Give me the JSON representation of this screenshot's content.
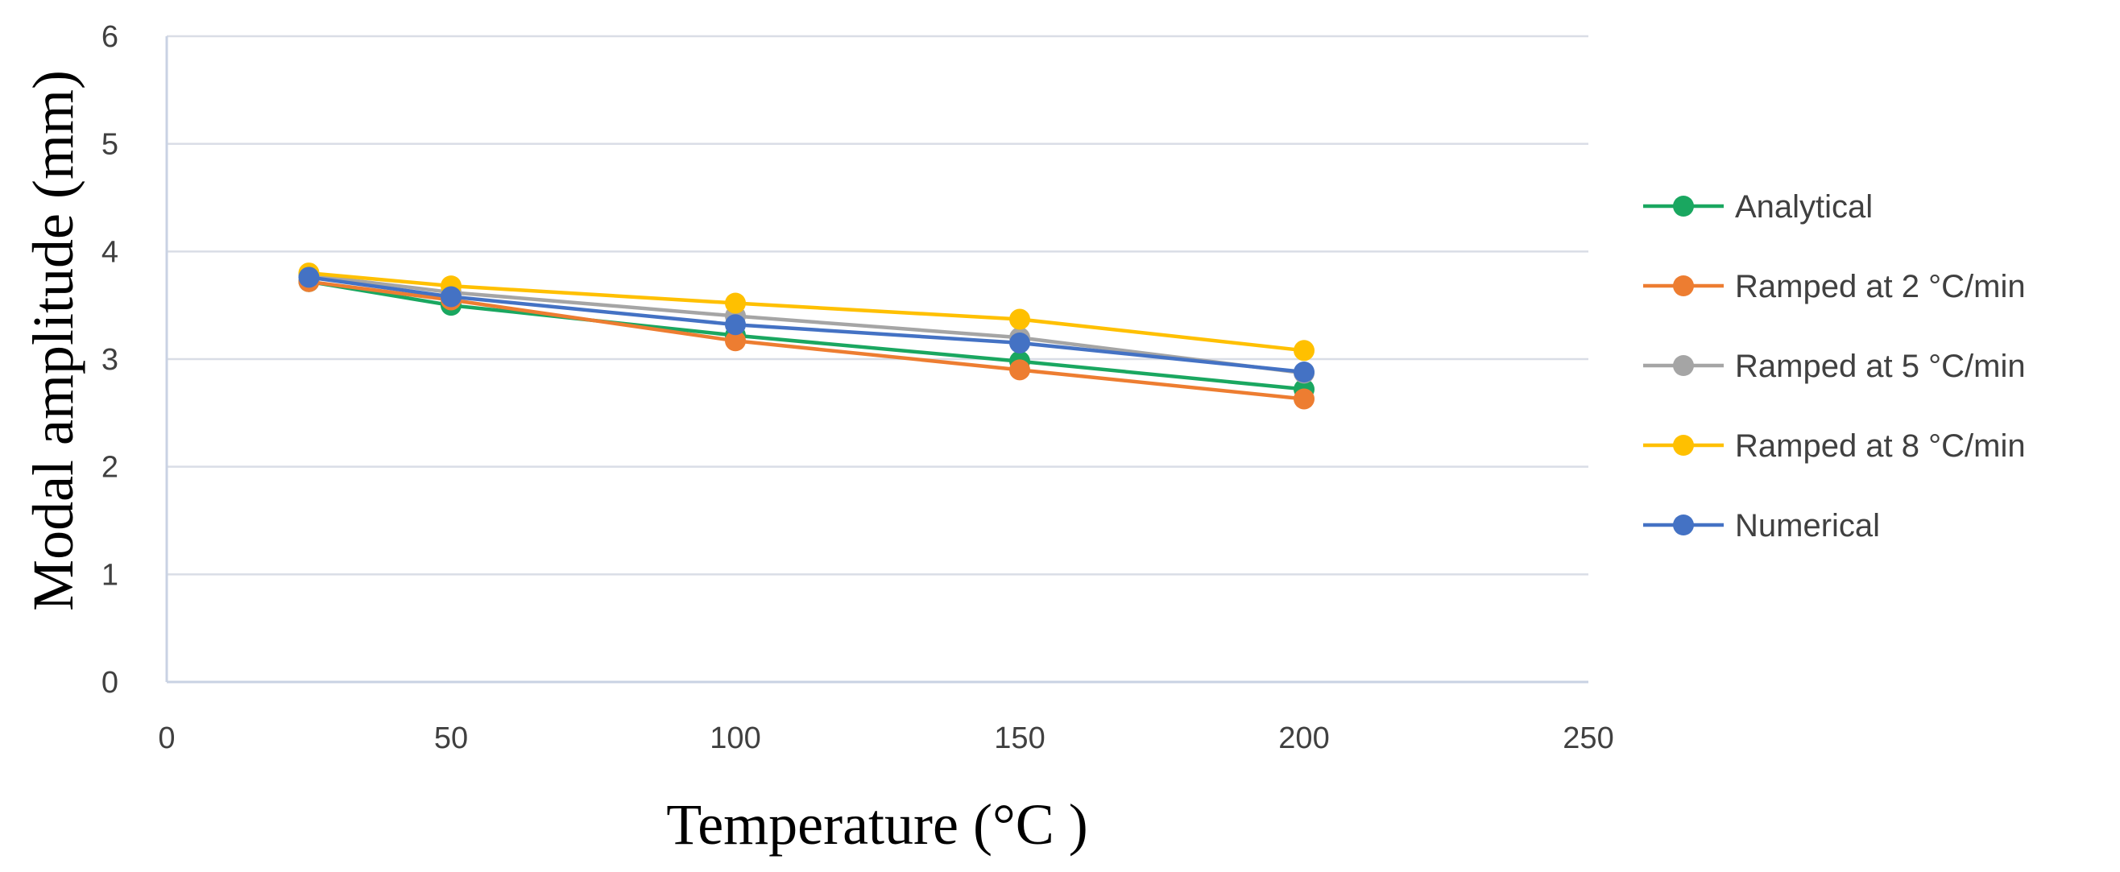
{
  "chart_data": {
    "type": "line",
    "title": "",
    "xlabel": "Temperature (°C )",
    "ylabel": "Modal amplitude (mm)",
    "xlim": [
      0,
      250
    ],
    "ylim": [
      0,
      6
    ],
    "xticks": [
      0,
      50,
      100,
      150,
      200,
      250
    ],
    "yticks": [
      0,
      1,
      2,
      3,
      4,
      5,
      6
    ],
    "grid": true,
    "legend_position": "right",
    "x": [
      25,
      50,
      100,
      150,
      200
    ],
    "series": [
      {
        "name": "Analytical",
        "color": "#1aa760",
        "values": [
          3.72,
          3.5,
          3.22,
          2.98,
          2.72
        ]
      },
      {
        "name": "Ramped at 2 °C/min",
        "color": "#ed7d31",
        "values": [
          3.72,
          3.55,
          3.17,
          2.9,
          2.63
        ]
      },
      {
        "name": "Ramped at 5 °C/min",
        "color": "#a5a5a5",
        "values": [
          3.78,
          3.62,
          3.4,
          3.2,
          2.87
        ]
      },
      {
        "name": "Ramped at 8 °C/min",
        "color": "#ffc000",
        "values": [
          3.8,
          3.68,
          3.52,
          3.37,
          3.08
        ]
      },
      {
        "name": "Numerical",
        "color": "#4472c4",
        "values": [
          3.76,
          3.58,
          3.32,
          3.15,
          2.88
        ]
      }
    ]
  }
}
